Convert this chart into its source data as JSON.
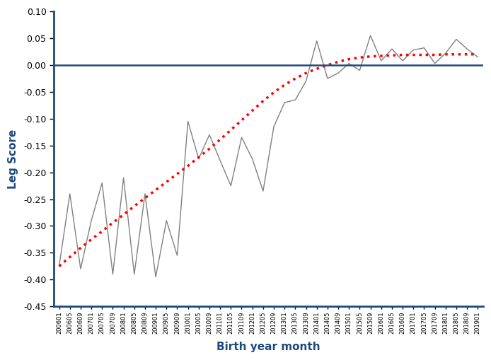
{
  "ylabel": "Leg Score",
  "xlabel": "Birth year month",
  "ylim": [
    -0.45,
    0.1
  ],
  "yticks": [
    0.1,
    0.05,
    0.0,
    -0.05,
    -0.1,
    -0.15,
    -0.2,
    -0.25,
    -0.3,
    -0.35,
    -0.4,
    -0.45
  ],
  "line_color": "#808080",
  "trend_color": "#FF0000",
  "hline_color": "#1F497D",
  "axis_color": "#1F497D",
  "label_color": "#1F497D",
  "background_color": "#FFFFFF",
  "tick_labels": [
    "200601",
    "200605",
    "200609",
    "200701",
    "200705",
    "200709",
    "200801",
    "200805",
    "200809",
    "200901",
    "200905",
    "200909",
    "201001",
    "201005",
    "201009",
    "201101",
    "201105",
    "201109",
    "201201",
    "201205",
    "201209",
    "201301",
    "201305",
    "201309",
    "201401",
    "201405",
    "201409",
    "201501",
    "201505",
    "201509",
    "201601",
    "201605",
    "201609",
    "201701",
    "201705",
    "201709",
    "201801",
    "201805",
    "201809",
    "201901"
  ],
  "raw_values": [
    -0.375,
    -0.24,
    -0.38,
    -0.29,
    -0.22,
    -0.39,
    -0.21,
    -0.39,
    -0.24,
    -0.395,
    -0.29,
    -0.355,
    -0.105,
    -0.175,
    -0.13,
    -0.178,
    -0.225,
    -0.135,
    -0.175,
    -0.235,
    -0.115,
    -0.07,
    -0.065,
    -0.03,
    0.045,
    -0.025,
    -0.015,
    0.003,
    -0.01,
    0.055,
    0.008,
    0.03,
    0.008,
    0.028,
    0.032,
    0.003,
    0.022,
    0.048,
    0.03,
    0.015
  ],
  "trend_values": [
    -0.375,
    -0.358,
    -0.341,
    -0.325,
    -0.31,
    -0.294,
    -0.279,
    -0.263,
    -0.248,
    -0.233,
    -0.218,
    -0.203,
    -0.188,
    -0.172,
    -0.156,
    -0.139,
    -0.121,
    -0.103,
    -0.085,
    -0.067,
    -0.051,
    -0.037,
    -0.025,
    -0.015,
    -0.007,
    0.0,
    0.006,
    0.011,
    0.014,
    0.016,
    0.017,
    0.018,
    0.019,
    0.019,
    0.019,
    0.019,
    0.02,
    0.02,
    0.02,
    0.02
  ]
}
